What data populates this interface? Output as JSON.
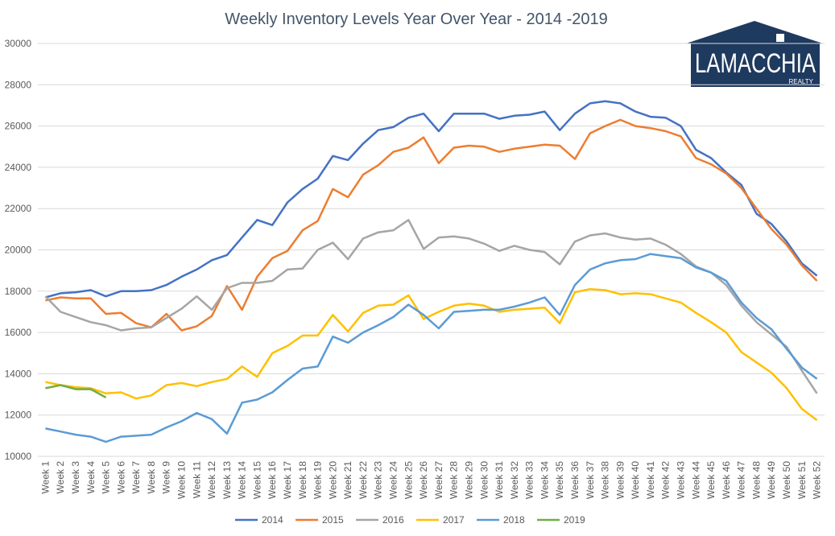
{
  "chart_data": {
    "type": "line",
    "title": "Weekly Inventory Levels Year Over Year - 2014 -2019",
    "logo": {
      "name": "LAMACCHIA",
      "tagline": "REALTY"
    },
    "categories": [
      "Week 1",
      "Week 2",
      "Week 3",
      "Week 4",
      "Week 5",
      "Week 6",
      "Week 7",
      "Week 8",
      "Week 9",
      "Week 10",
      "Week 11",
      "Week 12",
      "Week 13",
      "Week 14",
      "Week 15",
      "Week 16",
      "Week 17",
      "Week 18",
      "Week 19",
      "Week 20",
      "Week 21",
      "Week 22",
      "Week 23",
      "Week 24",
      "Week 25",
      "Week 26",
      "Week 27",
      "Week 28",
      "Week 29",
      "Week 30",
      "Week 31",
      "Week 32",
      "Week 33",
      "Week 34",
      "Week 35",
      "Week 36",
      "Week 37",
      "Week 38",
      "Week 39",
      "Week 40",
      "Week 41",
      "Week 42",
      "Week 43",
      "Week 44",
      "Week 45",
      "Week 46",
      "Week 47",
      "Week 48",
      "Week 49",
      "Week 50",
      "Week 51",
      "Week 52"
    ],
    "ylim": [
      10000,
      30000
    ],
    "yticks": [
      10000,
      12000,
      14000,
      16000,
      18000,
      20000,
      22000,
      24000,
      26000,
      28000,
      30000
    ],
    "grid": true,
    "legend": "bottom",
    "series": [
      {
        "name": "2014",
        "color": "#4472c4",
        "values": [
          17700,
          17900,
          17950,
          18050,
          17750,
          18000,
          18000,
          18050,
          18300,
          18700,
          19050,
          19500,
          19750,
          20600,
          21450,
          21200,
          22300,
          22950,
          23450,
          24550,
          24350,
          25150,
          25800,
          25950,
          26400,
          26600,
          25750,
          26600,
          26600,
          26600,
          26350,
          26500,
          26550,
          26700,
          25800,
          26600,
          27100,
          27200,
          27100,
          26700,
          26450,
          26400,
          26000,
          24850,
          24450,
          23750,
          23150,
          21750,
          21250,
          20400,
          19350,
          18750
        ]
      },
      {
        "name": "2015",
        "color": "#ed7d31",
        "values": [
          17550,
          17700,
          17650,
          17650,
          16900,
          16950,
          16450,
          16250,
          16900,
          16100,
          16300,
          16800,
          18250,
          17100,
          18700,
          19600,
          19950,
          20950,
          21400,
          22950,
          22550,
          23650,
          24100,
          24750,
          24950,
          25450,
          24200,
          24950,
          25050,
          25000,
          24750,
          24900,
          25000,
          25100,
          25050,
          24400,
          25650,
          26000,
          26300,
          26000,
          25900,
          25750,
          25500,
          24450,
          24150,
          23700,
          23000,
          22000,
          21000,
          20250,
          19250,
          18500
        ]
      },
      {
        "name": "2016",
        "color": "#a5a5a5",
        "values": [
          17750,
          17000,
          16750,
          16500,
          16350,
          16100,
          16200,
          16250,
          16700,
          17150,
          17750,
          17100,
          18150,
          18400,
          18400,
          18500,
          19050,
          19100,
          20000,
          20350,
          19550,
          20550,
          20850,
          20950,
          21450,
          20050,
          20600,
          20650,
          20550,
          20300,
          19950,
          20200,
          20000,
          19900,
          19300,
          20400,
          20700,
          20800,
          20600,
          20500,
          20550,
          20250,
          19800,
          19200,
          18900,
          18300,
          17300,
          16500,
          15900,
          15300,
          14150,
          13050
        ]
      },
      {
        "name": "2017",
        "color": "#ffc000",
        "values": [
          13600,
          13450,
          13350,
          13300,
          13050,
          13100,
          12800,
          12950,
          13450,
          13550,
          13400,
          13600,
          13750,
          14350,
          13850,
          15000,
          15350,
          15850,
          15850,
          16850,
          16050,
          16950,
          17300,
          17350,
          17800,
          16650,
          17000,
          17300,
          17400,
          17300,
          17000,
          17100,
          17150,
          17200,
          16450,
          17950,
          18100,
          18050,
          17850,
          17900,
          17850,
          17650,
          17450,
          16950,
          16500,
          16000,
          15050,
          14550,
          14050,
          13300,
          12300,
          11750
        ]
      },
      {
        "name": "2018",
        "color": "#5b9bd5",
        "values": [
          11350,
          11200,
          11050,
          10950,
          10700,
          10950,
          11000,
          11050,
          11400,
          11700,
          12100,
          11800,
          11100,
          12600,
          12750,
          13100,
          13700,
          14250,
          14350,
          15800,
          15500,
          16000,
          16350,
          16750,
          17350,
          16850,
          16200,
          17000,
          17050,
          17100,
          17100,
          17250,
          17450,
          17700,
          16850,
          18300,
          19050,
          19350,
          19500,
          19550,
          19800,
          19700,
          19600,
          19150,
          18900,
          18500,
          17450,
          16700,
          16150,
          15200,
          14300,
          13750
        ]
      },
      {
        "name": "2019",
        "color": "#70ad47",
        "values": [
          13300,
          13450,
          13250,
          13250,
          12850,
          null,
          null,
          null,
          null,
          null,
          null,
          null,
          null,
          null,
          null,
          null,
          null,
          null,
          null,
          null,
          null,
          null,
          null,
          null,
          null,
          null,
          null,
          null,
          null,
          null,
          null,
          null,
          null,
          null,
          null,
          null,
          null,
          null,
          null,
          null,
          null,
          null,
          null,
          null,
          null,
          null,
          null,
          null,
          null,
          null,
          null,
          null
        ]
      }
    ]
  }
}
